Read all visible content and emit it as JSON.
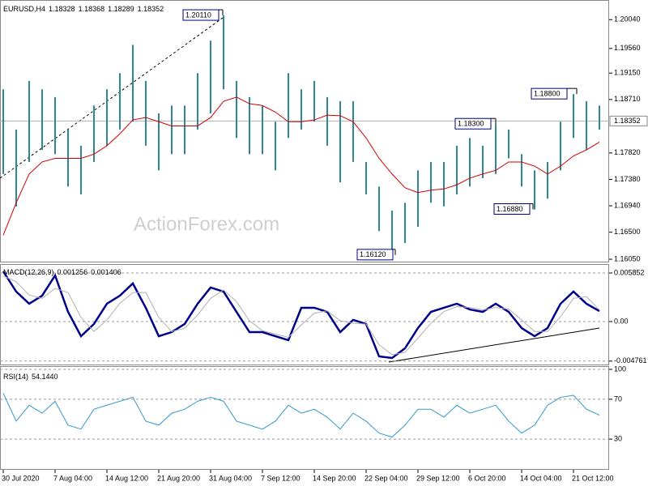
{
  "chart_data": [
    {
      "type": "range",
      "title": "EURUSD,H4",
      "subtitle_values": [
        1.18328,
        1.18368,
        1.18289,
        1.18352
      ],
      "categories": [
        "30 Jul 2020",
        null,
        null,
        null,
        "7 Aug 04:00",
        null,
        null,
        null,
        "14 Aug 12:00",
        null,
        null,
        null,
        "21 Aug 20:00",
        null,
        null,
        null,
        "31 Aug 04:00",
        null,
        null,
        null,
        "7 Sep 12:00",
        null,
        null,
        null,
        "14 Sep 20:00",
        null,
        null,
        null,
        "22 Sep 04:00",
        null,
        null,
        null,
        "29 Sep 12:00",
        null,
        null,
        null,
        "6 Oct 20:00",
        null,
        null,
        null,
        "14 Oct 04:00",
        null,
        null,
        null,
        "21 Oct 12:00",
        null,
        null
      ],
      "high": [
        1.1888,
        1.1821,
        1.1902,
        1.1888,
        1.1875,
        1.1821,
        1.1794,
        1.1861,
        1.1888,
        1.1915,
        1.1962,
        1.1902,
        1.1848,
        1.1861,
        1.1861,
        1.1915,
        1.1969,
        1.2011,
        1.1902,
        1.1875,
        1.1861,
        1.1834,
        1.1915,
        1.1888,
        1.1902,
        1.1875,
        1.1868,
        1.1868,
        1.1767,
        1.1726,
        1.1686,
        1.1699,
        1.1753,
        1.1767,
        1.1767,
        1.1794,
        1.1807,
        1.1794,
        1.183,
        1.1821,
        1.178,
        1.1753,
        1.1767,
        1.1834,
        1.188,
        1.1868,
        1.1861
      ],
      "low": [
        1.1747,
        1.1693,
        1.1767,
        1.1787,
        1.178,
        1.1726,
        1.1713,
        1.1767,
        1.1794,
        1.1821,
        1.1834,
        1.1794,
        1.1753,
        1.178,
        1.178,
        1.1821,
        1.1848,
        1.1888,
        1.1807,
        1.178,
        1.178,
        1.1753,
        1.1807,
        1.1821,
        1.1834,
        1.1794,
        1.1733,
        1.1767,
        1.1713,
        1.1652,
        1.1612,
        1.1632,
        1.1659,
        1.1699,
        1.1693,
        1.1713,
        1.1726,
        1.174,
        1.1747,
        1.1773,
        1.1726,
        1.1688,
        1.1706,
        1.1753,
        1.1807,
        1.1787,
        1.1821
      ],
      "color": "#2f8796",
      "ma": {
        "color": "#d00000",
        "values": [
          1.1645,
          1.1699,
          1.1747,
          1.1767,
          1.1773,
          1.1773,
          1.1773,
          1.178,
          1.1794,
          1.1814,
          1.1837,
          1.1841,
          1.1834,
          1.1827,
          1.1827,
          1.1827,
          1.1841,
          1.1868,
          1.1875,
          1.1864,
          1.1861,
          1.185,
          1.1834,
          1.1834,
          1.1837,
          1.1845,
          1.1844,
          1.1834,
          1.1807,
          1.1773,
          1.1747,
          1.1724,
          1.1716,
          1.172,
          1.1722,
          1.1729,
          1.174,
          1.1747,
          1.1753,
          1.1767,
          1.1767,
          1.176,
          1.1747,
          1.176,
          1.1777,
          1.1787,
          1.18
        ]
      },
      "ylim": [
        1.1601,
        1.2034
      ],
      "yticks": [
        {
          "value": 1.2004,
          "label": "1.20040"
        },
        {
          "value": 1.1956,
          "label": "1.19560"
        },
        {
          "value": 1.1915,
          "label": "1.19150"
        },
        {
          "value": 1.1871,
          "label": "1.18710"
        },
        {
          "value": 1.1782,
          "label": "1.17820"
        },
        {
          "value": 1.1738,
          "label": "1.17380"
        },
        {
          "value": 1.1694,
          "label": "1.16940"
        },
        {
          "value": 1.165,
          "label": "1.16500"
        },
        {
          "value": 1.1605,
          "label": "1.16050"
        }
      ],
      "current": {
        "value": 1.18352,
        "label": "1.18352"
      },
      "annotations": [
        {
          "value": 1.2011,
          "label": "1.20110"
        },
        {
          "value": 1.188,
          "label": "1.18800"
        },
        {
          "value": 1.183,
          "label": "1.18300"
        },
        {
          "value": 1.1688,
          "label": "1.16880"
        },
        {
          "value": 1.1612,
          "label": "1.16120"
        }
      ],
      "watermark": "ActionForex.com",
      "grid": false
    },
    {
      "type": "line",
      "title": "MACD(12,26,9)",
      "subtitle_values": [
        0.001256,
        0.001406
      ],
      "series": [
        {
          "color": "#00008b",
          "width": 2.5,
          "values": [
            0.00605,
            0.00361,
            0.00215,
            0.00312,
            0.00556,
            0.00117,
            -0.00176,
            -0.00029,
            0.00215,
            0.00312,
            0.00459,
            0.00166,
            -0.00176,
            -0.00127,
            -0.00029,
            0.00215,
            0.0041,
            0.00361,
            0.00117,
            -0.00127,
            -0.00127,
            -0.00176,
            -0.00224,
            0.00166,
            0.00166,
            0.00117,
            -0.00127,
            0.0002,
            -0.00029,
            -0.00419,
            -0.00439,
            -0.00322,
            -0.00078,
            0.00117,
            0.00166,
            0.00215,
            0.00146,
            0.00117,
            0.00215,
            0.00117,
            -0.00078,
            -0.00176,
            -0.00078,
            0.00215,
            0.00361,
            0.00215,
            0.00126
          ]
        },
        {
          "color": "#b0b0b0",
          "width": 1,
          "values": [
            0.0055,
            0.0048,
            0.0032,
            0.0028,
            0.004,
            0.0035,
            0.0005,
            -0.0012,
            0.0002,
            0.0022,
            0.0035,
            0.0035,
            0.0005,
            -0.0012,
            -0.0008,
            0.0008,
            0.0028,
            0.0038,
            0.0024,
            0.0001,
            -0.0011,
            -0.0015,
            -0.0019,
            -0.0004,
            0.001,
            0.0013,
            0.0001,
            -0.0002,
            -0.0003,
            -0.0028,
            -0.004,
            -0.0037,
            -0.002,
            -0.0002,
            0.0012,
            0.0018,
            0.0017,
            0.0014,
            0.0017,
            0.0015,
            0.0002,
            -0.0012,
            -0.0012,
            0.0006,
            0.0028,
            0.003,
            0.00141
          ]
        }
      ],
      "ylim": [
        -0.00517,
        0.00683
      ],
      "yticks": [
        0.005852,
        {
          "value": 0,
          "label": "0.00"
        },
        -0.004761
      ],
      "grid": true
    },
    {
      "type": "line",
      "title": "RSI(14)",
      "subtitle_values": [
        {
          "value": 54.144,
          "label": "54.1440"
        }
      ],
      "series": [
        {
          "color": "#3399cc",
          "width": 1,
          "values": [
            76,
            48,
            64,
            56,
            68,
            44,
            40,
            60,
            64,
            68,
            72,
            48,
            44,
            56,
            60,
            68,
            72,
            68,
            48,
            44,
            40,
            48,
            64,
            56,
            60,
            52,
            40,
            56,
            48,
            36,
            32,
            44,
            60,
            60,
            52,
            64,
            56,
            60,
            64,
            48,
            36,
            44,
            64,
            72,
            74,
            60,
            54.144
          ]
        }
      ],
      "ylim": [
        0,
        100
      ],
      "yticks": [
        30,
        70,
        100
      ],
      "grid": true
    }
  ]
}
